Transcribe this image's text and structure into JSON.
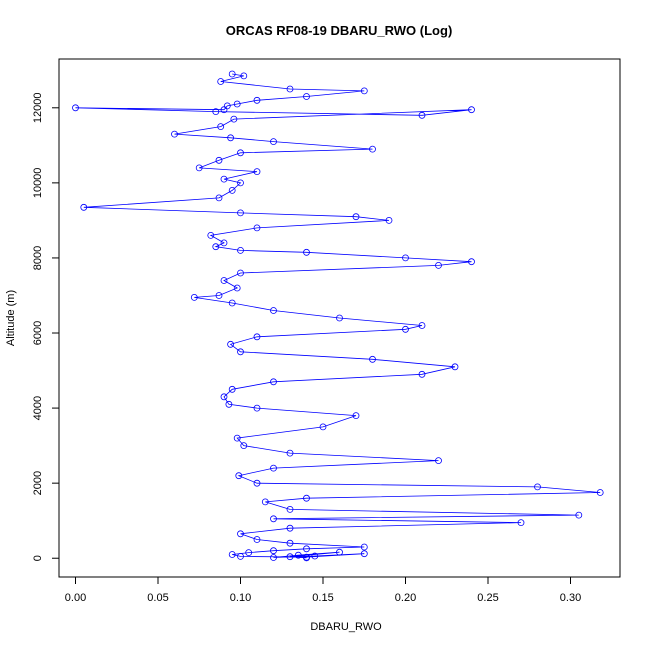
{
  "chart_data": {
    "type": "scatter",
    "title": "ORCAS RF08-19 DBARU_RWO (Log)",
    "xlabel": "DBARU_RWO",
    "ylabel": "Altitude (m)",
    "xlim": [
      -0.01,
      0.33
    ],
    "ylim": [
      -500,
      13300
    ],
    "x_ticks": [
      0.0,
      0.05,
      0.1,
      0.15,
      0.2,
      0.25,
      0.3
    ],
    "x_tick_labels": [
      "0.00",
      "0.05",
      "0.10",
      "0.15",
      "0.20",
      "0.25",
      "0.30"
    ],
    "y_ticks": [
      0,
      2000,
      4000,
      6000,
      8000,
      10000,
      12000
    ],
    "y_tick_labels": [
      "0",
      "2000",
      "4000",
      "6000",
      "8000",
      "10000",
      "12000"
    ],
    "series_color": "#0000ff",
    "marker": "open-circle-connected",
    "grid": false,
    "legend": "none",
    "series": [
      {
        "x": [
          0.095,
          0.102,
          0.088,
          0.13,
          0.175,
          0.14,
          0.11,
          0.098,
          0.092,
          0.09,
          0.0,
          0.085,
          0.21,
          0.24,
          0.096,
          0.088,
          0.06,
          0.094,
          0.12,
          0.18,
          0.1,
          0.087,
          0.075,
          0.11,
          0.09,
          0.1,
          0.095,
          0.087,
          0.005,
          0.1,
          0.17,
          0.19,
          0.11,
          0.082,
          0.09,
          0.085,
          0.1,
          0.14,
          0.2,
          0.24,
          0.22,
          0.1,
          0.09,
          0.098,
          0.087,
          0.072,
          0.095,
          0.12,
          0.16,
          0.21,
          0.2,
          0.11,
          0.094,
          0.1,
          0.18,
          0.23,
          0.21,
          0.12,
          0.095,
          0.09,
          0.093,
          0.11,
          0.17,
          0.15,
          0.098,
          0.102,
          0.13,
          0.22,
          0.12,
          0.099,
          0.11,
          0.28,
          0.318,
          0.14,
          0.115,
          0.13,
          0.305,
          0.12,
          0.27,
          0.13,
          0.1,
          0.11,
          0.13,
          0.175,
          0.14,
          0.12,
          0.105,
          0.095,
          0.1,
          0.14,
          0.175,
          0.145,
          0.12,
          0.135,
          0.16,
          0.13,
          0.14
        ],
        "y": [
          12900,
          12850,
          12700,
          12500,
          12450,
          12300,
          12200,
          12100,
          12050,
          11950,
          12000,
          11900,
          11800,
          11950,
          11700,
          11500,
          11300,
          11200,
          11100,
          10900,
          10800,
          10600,
          10400,
          10300,
          10100,
          10000,
          9800,
          9600,
          9350,
          9200,
          9100,
          9000,
          8800,
          8600,
          8400,
          8300,
          8200,
          8150,
          8000,
          7900,
          7800,
          7600,
          7400,
          7200,
          7000,
          6950,
          6800,
          6600,
          6400,
          6200,
          6100,
          5900,
          5700,
          5500,
          5300,
          5100,
          4900,
          4700,
          4500,
          4300,
          4100,
          4000,
          3800,
          3500,
          3200,
          3000,
          2800,
          2600,
          2400,
          2200,
          2000,
          1900,
          1750,
          1600,
          1500,
          1300,
          1150,
          1050,
          950,
          800,
          650,
          500,
          400,
          300,
          250,
          200,
          150,
          100,
          50,
          30,
          120,
          60,
          20,
          80,
          160,
          40,
          10
        ]
      }
    ]
  }
}
